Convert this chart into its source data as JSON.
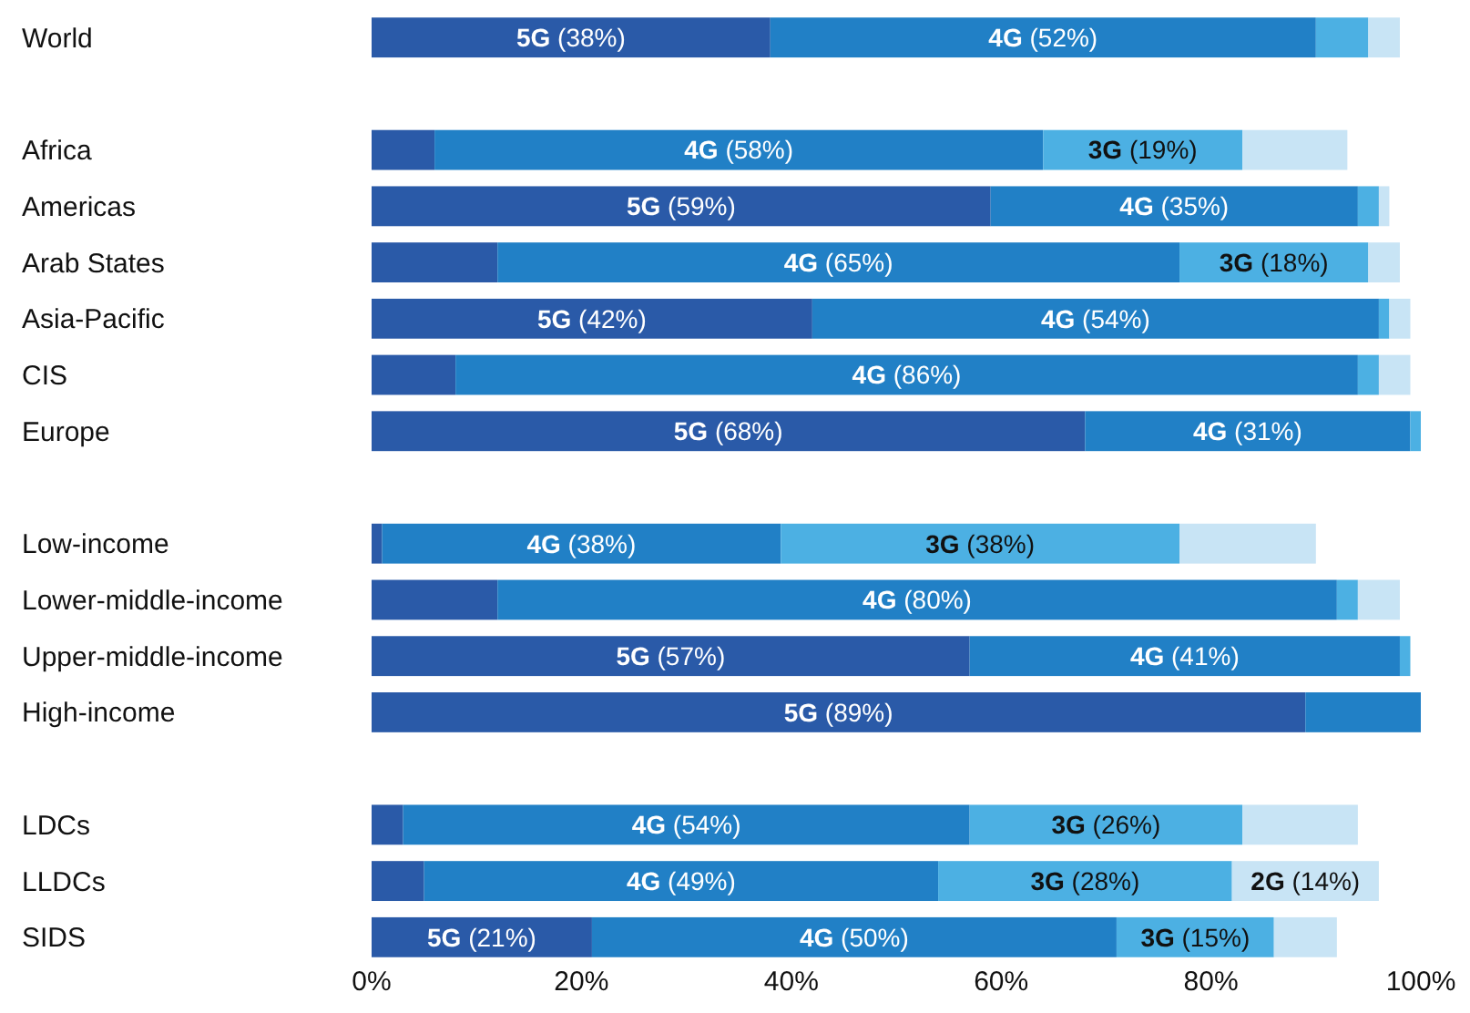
{
  "chart_data": {
    "type": "bar",
    "orientation": "horizontal",
    "stacked": true,
    "categories": [
      "World",
      null,
      "Africa",
      "Americas",
      "Arab States",
      "Asia-Pacific",
      "CIS",
      "Europe",
      null,
      "Low-income",
      "Lower-middle-income",
      "Upper-middle-income",
      "High-income",
      null,
      "LDCs",
      "LLDCs",
      "SIDS"
    ],
    "series": [
      {
        "color": "#2a5aa8",
        "values": [
          38,
          null,
          6,
          59,
          12,
          42,
          8,
          68,
          null,
          1,
          12,
          57,
          89,
          null,
          3,
          5,
          21
        ],
        "value_labels": [
          "5G (38%)",
          null,
          null,
          "5G (59%)",
          null,
          "5G (42%)",
          null,
          "5G (68%)",
          null,
          null,
          null,
          "5G (57%)",
          "5G (89%)",
          null,
          null,
          null,
          "5G (21%)"
        ]
      },
      {
        "color": "#2180c6",
        "values": [
          52,
          null,
          58,
          35,
          65,
          54,
          86,
          31,
          null,
          38,
          80,
          41,
          11,
          null,
          54,
          49,
          50
        ],
        "value_labels": [
          "4G (52%)",
          null,
          "4G (58%)",
          "4G (35%)",
          "4G (65%)",
          "4G (54%)",
          "4G (86%)",
          "4G (31%)",
          null,
          "4G (38%)",
          "4G (80%)",
          "4G (41%)",
          null,
          null,
          "4G (54%)",
          "4G (49%)",
          "4G (50%)"
        ]
      },
      {
        "color": "#4cb0e3",
        "values": [
          5,
          null,
          19,
          2,
          18,
          1,
          2,
          1,
          null,
          38,
          2,
          1,
          null,
          null,
          26,
          28,
          15
        ],
        "value_labels": [
          null,
          null,
          "3G (19%)",
          null,
          "3G (18%)",
          null,
          null,
          null,
          null,
          "3G (38%)",
          null,
          null,
          null,
          null,
          "3G (26%)",
          "3G (28%)",
          "3G (15%)"
        ]
      },
      {
        "color": "#c8e4f5",
        "values": [
          3,
          null,
          10,
          1,
          3,
          2,
          3,
          null,
          null,
          13,
          4,
          null,
          null,
          null,
          11,
          14,
          6
        ],
        "value_labels": [
          null,
          null,
          null,
          null,
          null,
          null,
          null,
          null,
          null,
          null,
          null,
          null,
          null,
          null,
          null,
          "2G (14%)",
          null
        ]
      }
    ],
    "xlim": [
      0,
      100
    ],
    "xticks": [
      {
        "value": 0,
        "label": "0%"
      },
      {
        "value": 20,
        "label": "20%"
      },
      {
        "value": 40,
        "label": "40%"
      },
      {
        "value": 60,
        "label": "60%"
      },
      {
        "value": 80,
        "label": "80%"
      },
      {
        "value": 100,
        "label": "100%"
      }
    ]
  }
}
